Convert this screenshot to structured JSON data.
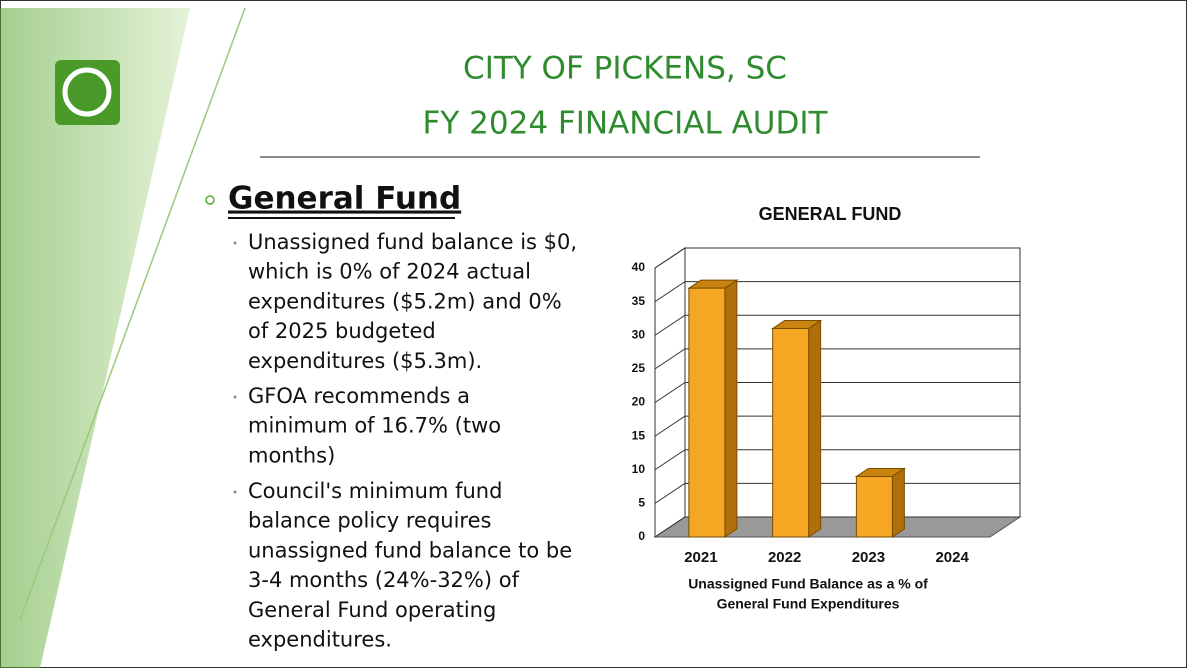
{
  "title_lines": [
    "CITY OF PICKENS, SC",
    "FY 2024 FINANCIAL AUDIT"
  ],
  "heading": "General Fund",
  "bullets": [
    [
      "Unassigned fund balance is $0,",
      "which is 0% of 2024 actual",
      "expenditures ($5.2m) and 0%",
      "of 2025 budgeted",
      "expenditures ($5.3m)."
    ],
    [
      "GFOA recommends a",
      "minimum of 16.7% (two",
      "months)"
    ],
    [
      "Council's minimum fund",
      "balance policy requires",
      "unassigned fund balance to be",
      "3-4 months (24%-32%) of",
      "General Fund operating",
      "expenditures."
    ]
  ],
  "chart_data": {
    "type": "bar3d",
    "title": "GENERAL FUND",
    "x_label_lines": [
      "Unassigned Fund Balance as a % of",
      "General Fund Expenditures"
    ],
    "categories": [
      "2021",
      "2022",
      "2023",
      "2024"
    ],
    "values": [
      37,
      31,
      9,
      0
    ],
    "color": "#f5a623",
    "ylim": [
      0,
      40
    ],
    "yticks": [
      0,
      5,
      10,
      15,
      20,
      25,
      30,
      35,
      40
    ],
    "grid": true
  }
}
